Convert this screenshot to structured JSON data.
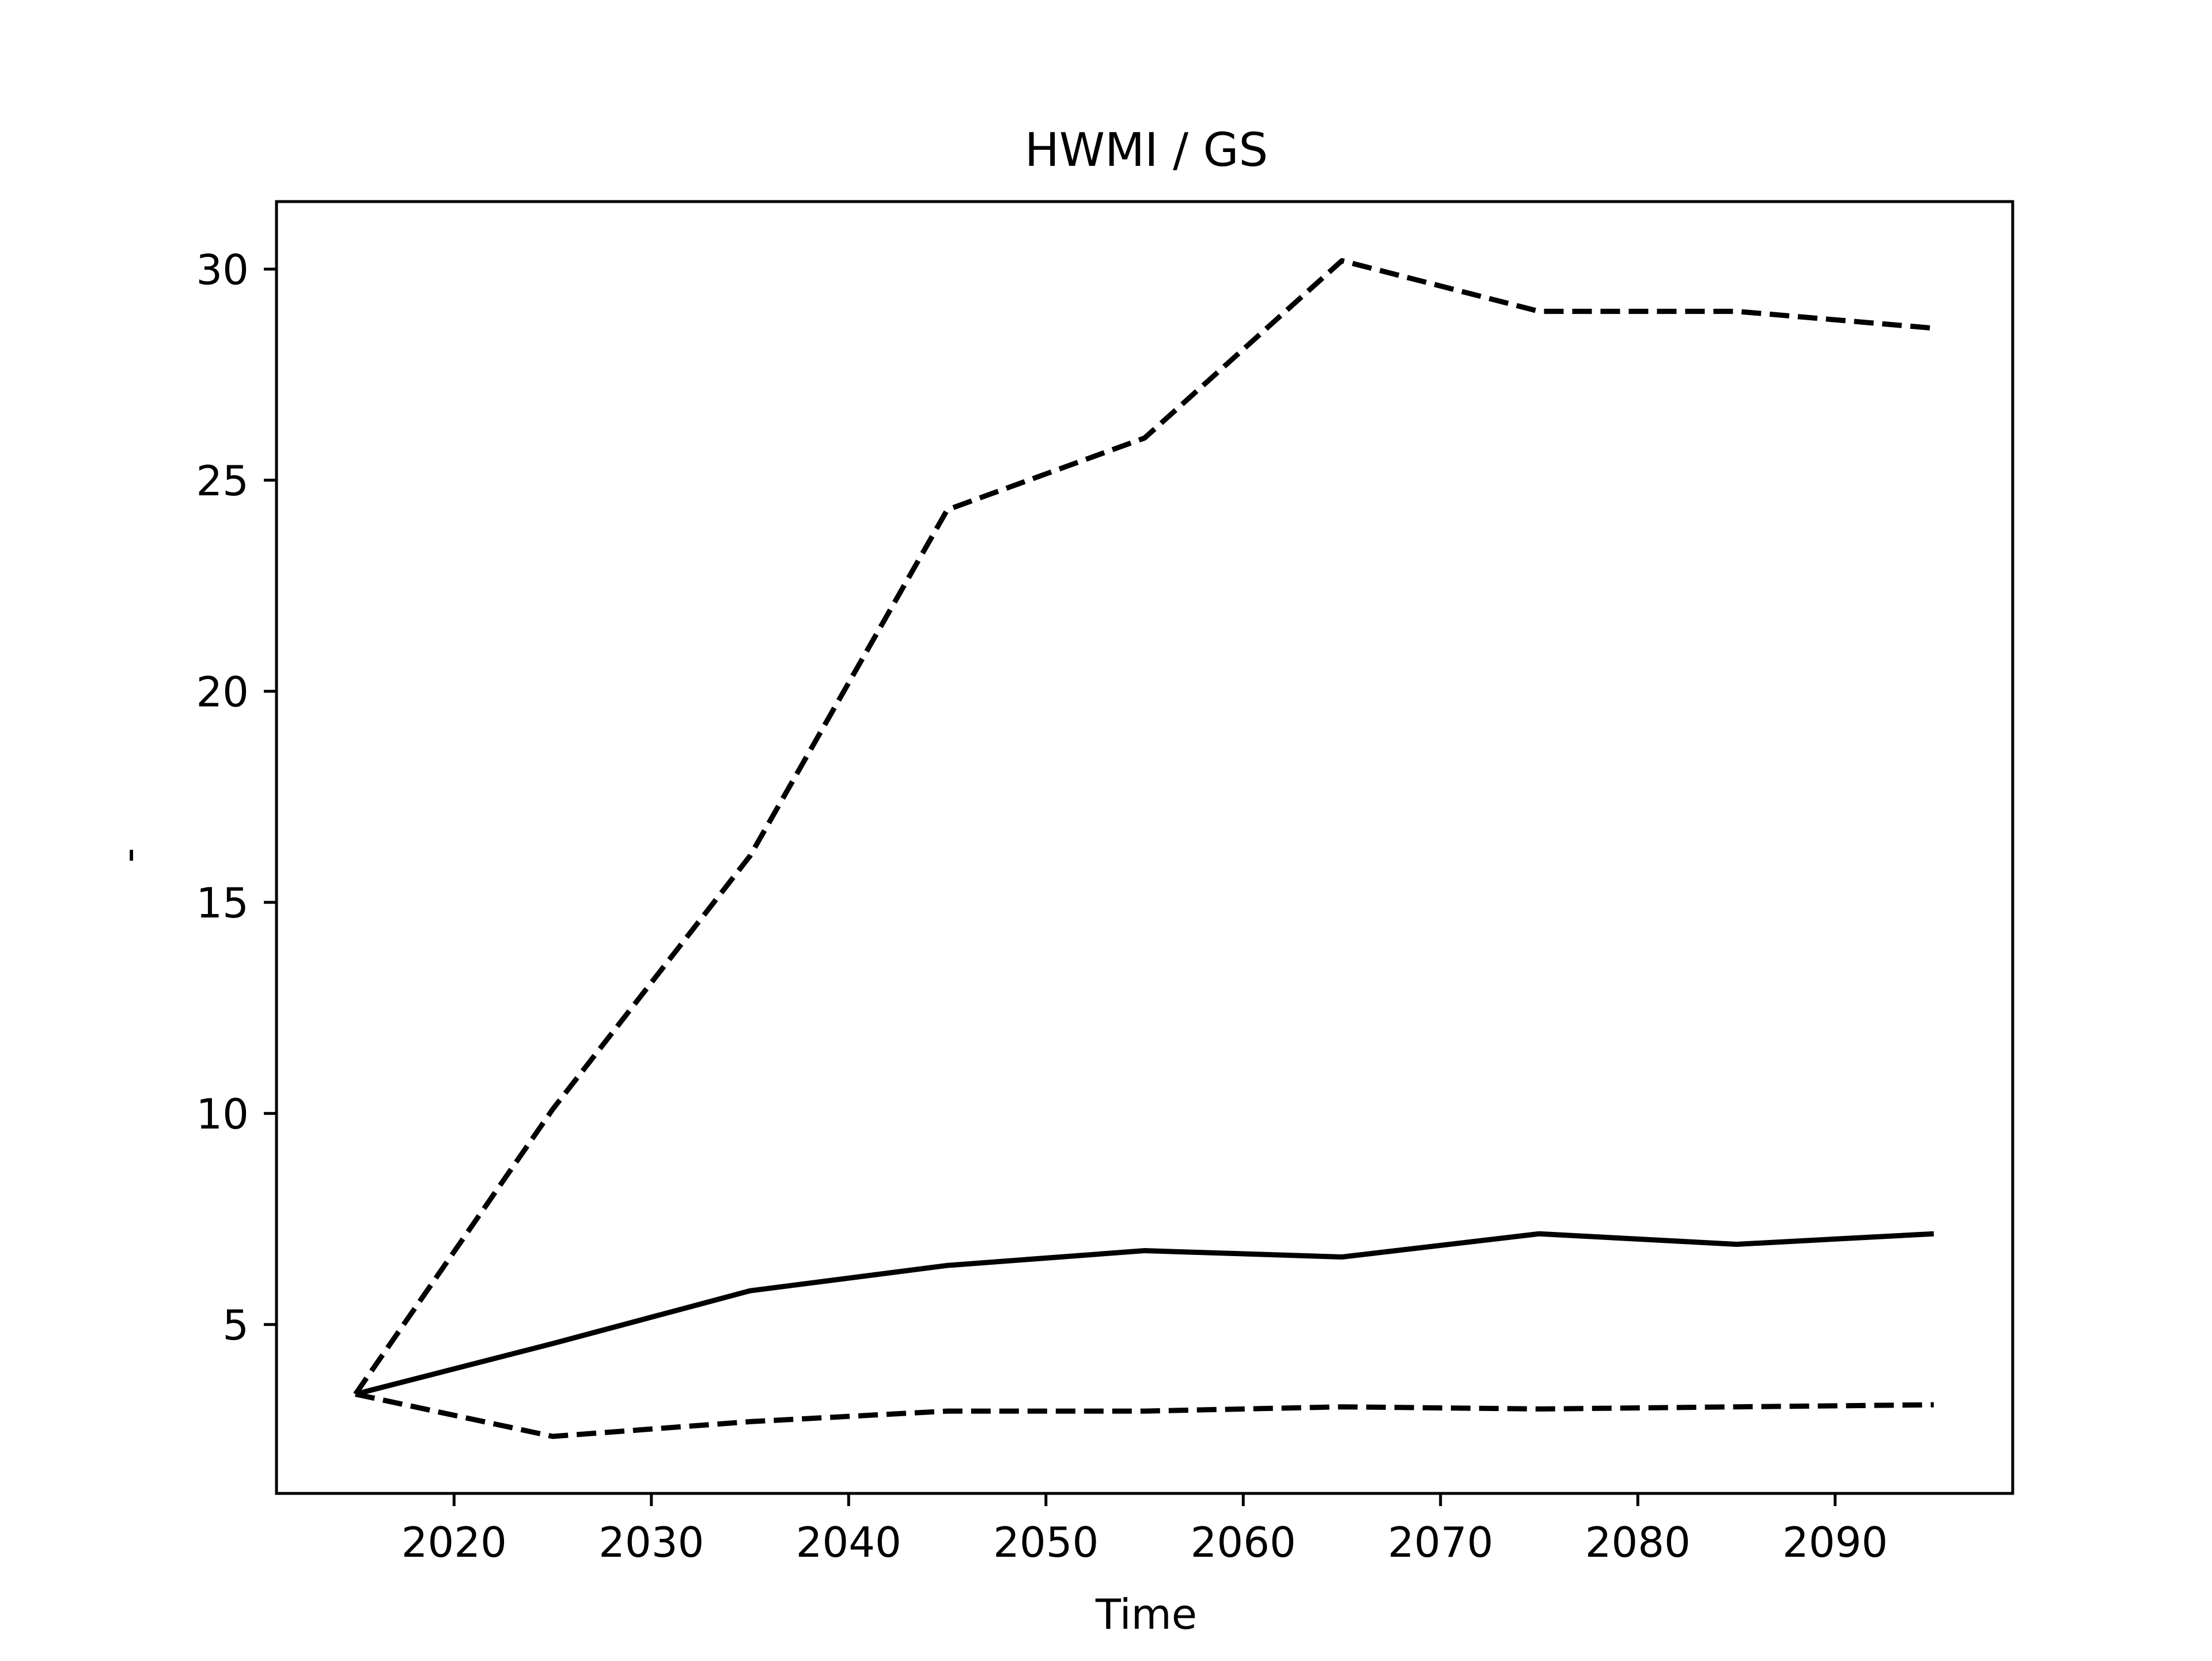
{
  "chart_data": {
    "type": "line",
    "title": "HWMI / GS",
    "xlabel": "Time",
    "ylabel": "-",
    "xlim": [
      2011,
      2099
    ],
    "ylim": [
      1,
      31.6
    ],
    "xticks": [
      2020,
      2030,
      2040,
      2050,
      2060,
      2070,
      2080,
      2090
    ],
    "yticks": [
      5,
      10,
      15,
      20,
      25,
      30
    ],
    "grid": false,
    "legend": "none",
    "x": [
      2015,
      2025,
      2035,
      2045,
      2055,
      2065,
      2075,
      2085,
      2095
    ],
    "series": [
      {
        "style": "solid",
        "color": "#000000",
        "values": [
          3.35,
          4.55,
          5.8,
          6.4,
          6.75,
          6.6,
          7.15,
          6.9,
          7.15
        ]
      },
      {
        "style": "dashed",
        "color": "#000000",
        "values": [
          3.35,
          10.1,
          16.1,
          24.3,
          26.0,
          30.2,
          29.0,
          29.0,
          28.6
        ]
      },
      {
        "style": "dashed",
        "color": "#000000",
        "values": [
          3.35,
          2.35,
          2.7,
          2.95,
          2.95,
          3.05,
          3.0,
          3.05,
          3.1
        ]
      }
    ]
  }
}
